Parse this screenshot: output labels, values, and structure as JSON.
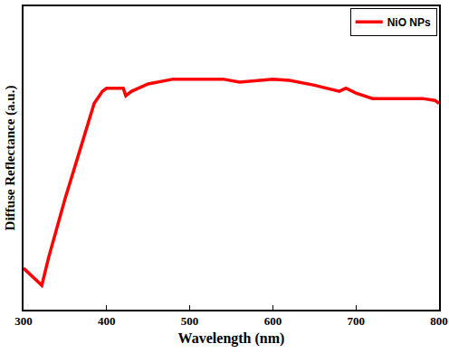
{
  "chart_data": {
    "type": "line",
    "x_label": "Wavelength (nm)",
    "y_label": "Diffuse Reflectance (a.u.)",
    "x": [
      300,
      310,
      322,
      330,
      350,
      370,
      385,
      395,
      400,
      410,
      420,
      423,
      430,
      450,
      480,
      500,
      540,
      560,
      580,
      600,
      620,
      650,
      680,
      688,
      700,
      720,
      750,
      780,
      795,
      800
    ],
    "series": [
      {
        "name": "NiO NPs",
        "color": "#ff0000",
        "values": [
          13.7,
          11,
          8,
          17,
          36.6,
          54.5,
          68,
          72,
          73,
          73,
          73,
          70.5,
          72,
          74.4,
          76,
          76,
          76,
          75,
          75.6,
          76,
          75.6,
          74,
          72,
          73,
          71.4,
          69.6,
          69.6,
          69.6,
          69,
          68
        ]
      }
    ],
    "xlim": [
      300,
      800
    ],
    "xticks": [
      300,
      400,
      500,
      600,
      700,
      800
    ],
    "ylim": [
      0,
      100
    ],
    "tick_labels": "x",
    "grid": false,
    "legend": "upper right"
  }
}
